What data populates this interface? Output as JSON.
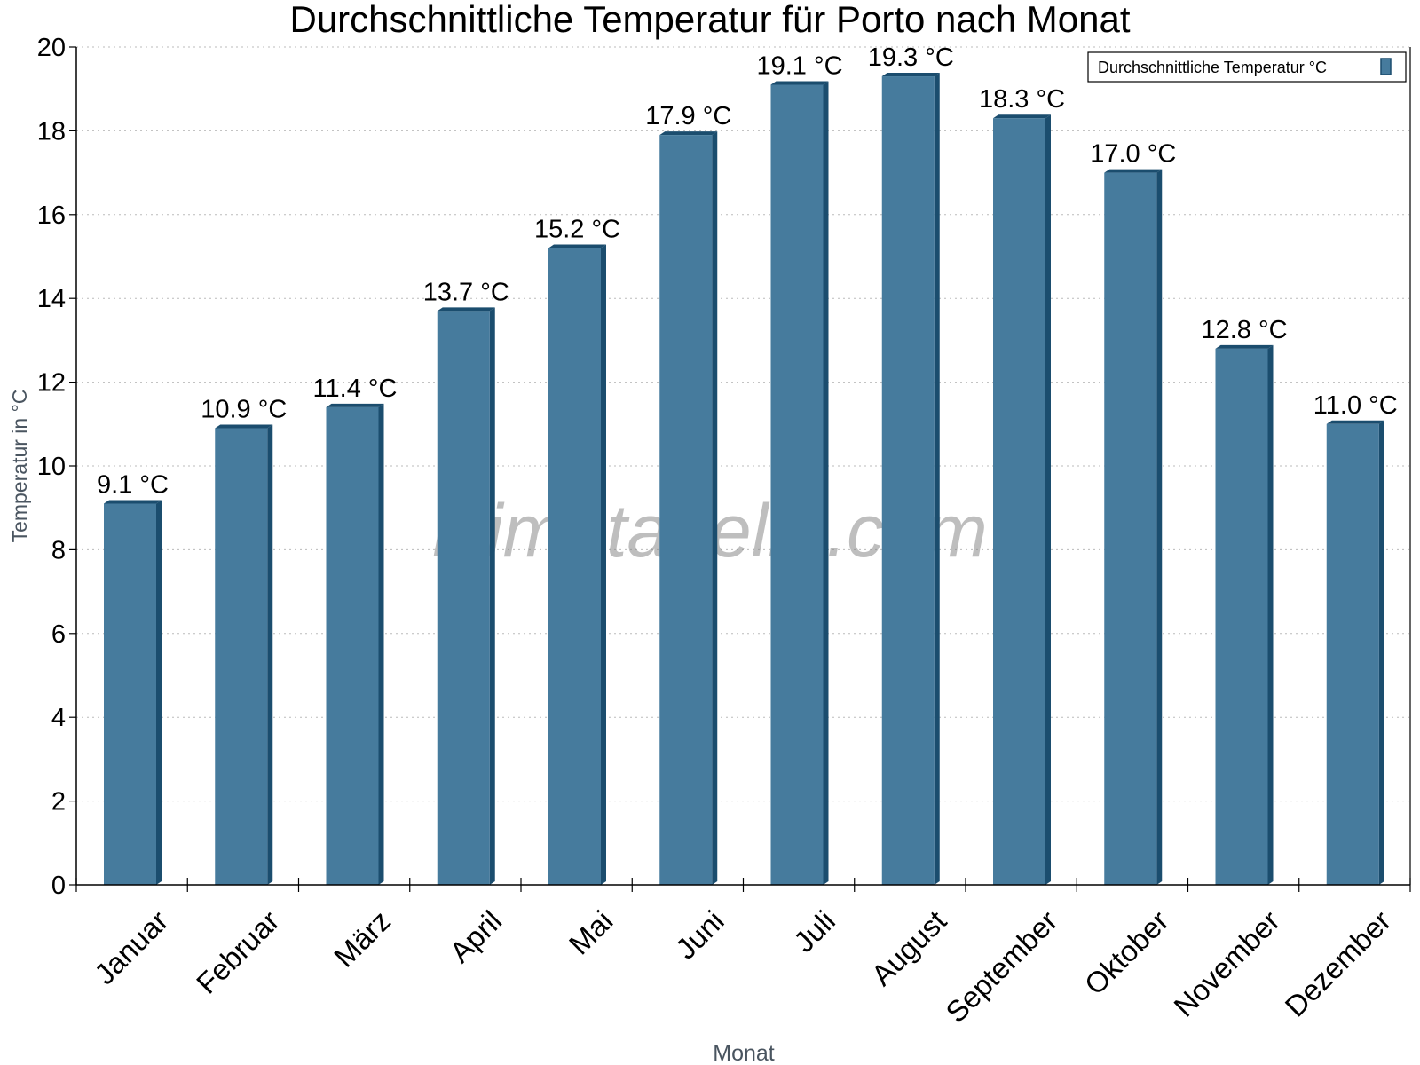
{
  "chart_data": {
    "type": "bar",
    "title": "Durchschnittliche Temperatur für Porto nach Monat",
    "xlabel": "Monat",
    "ylabel": "Temperatur in °C",
    "categories": [
      "Januar",
      "Februar",
      "März",
      "April",
      "Mai",
      "Juni",
      "Juli",
      "August",
      "September",
      "Oktober",
      "November",
      "Dezember"
    ],
    "series": [
      {
        "name": "Durchschnittliche Temperatur °C",
        "values": [
          9.1,
          10.9,
          11.4,
          13.7,
          15.2,
          17.9,
          19.1,
          19.3,
          18.3,
          17.0,
          12.8,
          11.0
        ]
      }
    ],
    "data_labels": [
      "9.1 °C",
      "10.9 °C",
      "11.4 °C",
      "13.7 °C",
      "15.2 °C",
      "17.9 °C",
      "19.1 °C",
      "19.3 °C",
      "18.3 °C",
      "17.0 °C",
      "12.8 °C",
      "11.0 °C"
    ],
    "ylim": [
      0,
      20
    ],
    "yticks": [
      0,
      2,
      4,
      6,
      8,
      10,
      12,
      14,
      16,
      18,
      20
    ],
    "grid": true,
    "legend_position": "top-right",
    "colors": {
      "bar": "#467b9d",
      "bar_side": "#1b4d6e"
    },
    "watermark": "klimatabelle.com"
  }
}
